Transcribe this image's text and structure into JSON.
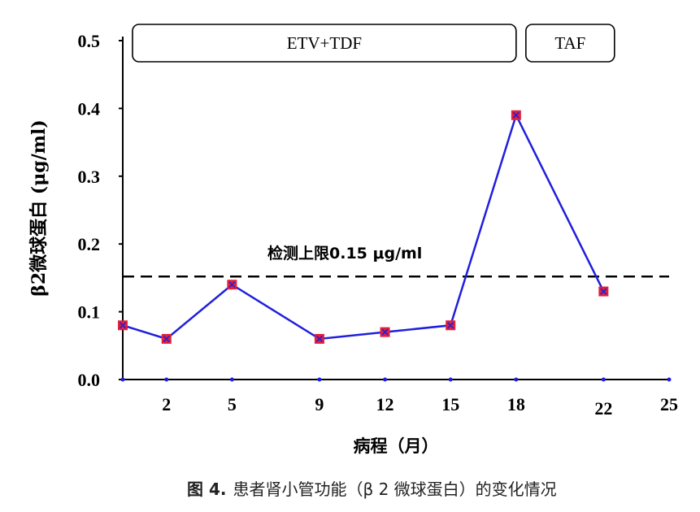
{
  "chart_data": {
    "type": "line",
    "ylabel": "β2微球蛋白 (μg/ml)",
    "xlabel": "病程（月）",
    "xlim": [
      0,
      25
    ],
    "ylim": [
      0,
      0.5
    ],
    "y_ticks": [
      "0.0",
      "0.1",
      "0.2",
      "0.3",
      "0.4",
      "0.5"
    ],
    "x_ticks": [
      "2",
      "5",
      "9",
      "12",
      "15",
      "18",
      "22",
      "25"
    ],
    "grid": false,
    "series": [
      {
        "x": [
          0,
          2,
          5,
          9,
          12,
          15,
          18,
          22
        ],
        "values": [
          0.08,
          0.06,
          0.14,
          0.06,
          0.07,
          0.08,
          0.39,
          0.13
        ],
        "color": "#1f1fdd",
        "marker_color": "#e0203c"
      }
    ],
    "reference_line": {
      "y": 0.152,
      "label": "检测上限0.15 μg/ml",
      "style": "dashed"
    },
    "treatment_periods": [
      {
        "label": "ETV+TDF",
        "start": 0,
        "end": 18
      },
      {
        "label": "TAF",
        "start": 18,
        "end": 22.5
      }
    ]
  },
  "caption": {
    "figure_label": "图 4.",
    "text": "患者肾小管功能（β 2 微球蛋白）的变化情况"
  }
}
